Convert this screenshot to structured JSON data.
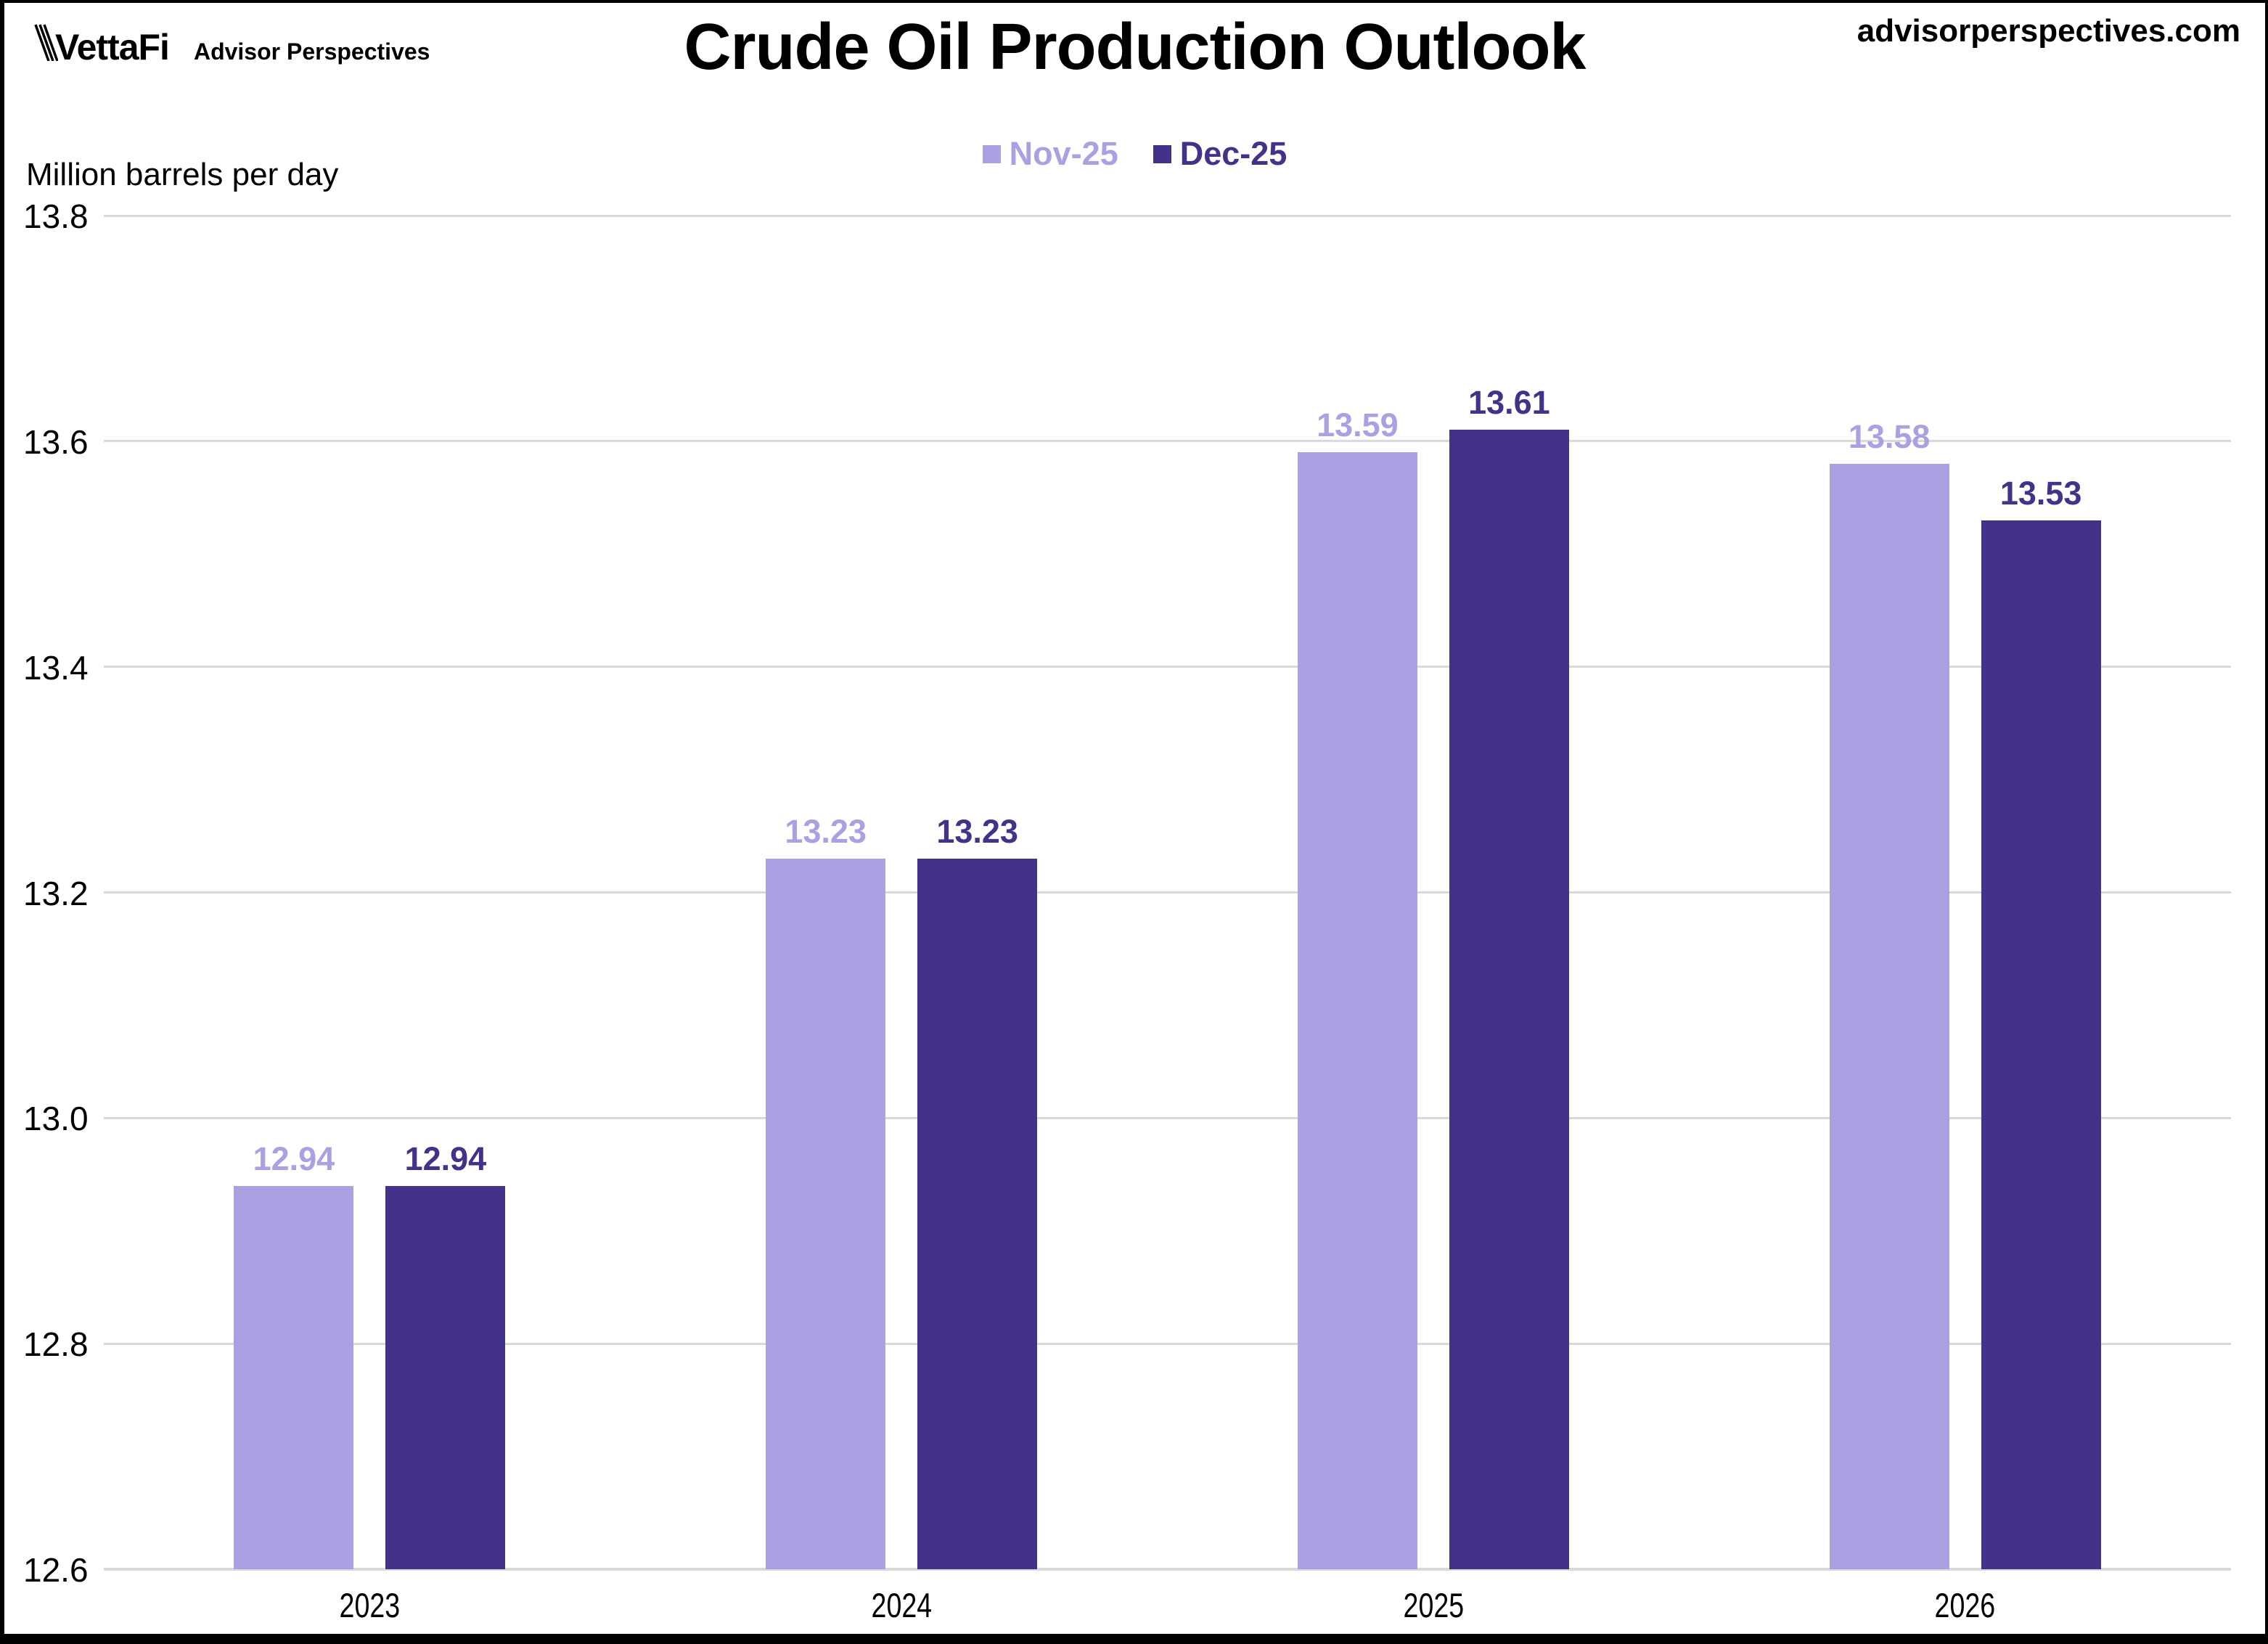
{
  "header": {
    "brand": "VettaFi",
    "brand_sub": "Advisor Perspectives",
    "website": "advisorperspectives.com"
  },
  "chart_data": {
    "type": "bar",
    "title": "Crude Oil Production Outlook",
    "ylabel": "Million barrels per day",
    "categories": [
      "2023",
      "2024",
      "2025",
      "2026"
    ],
    "series": [
      {
        "name": "Nov-25",
        "color": "#ACA0E2",
        "values": [
          12.94,
          13.23,
          13.59,
          13.58
        ]
      },
      {
        "name": "Dec-25",
        "color": "#44318A",
        "values": [
          12.94,
          13.23,
          13.61,
          13.53
        ]
      }
    ],
    "ylim": [
      12.6,
      13.8
    ],
    "yticks": [
      13.8,
      13.6,
      13.4,
      13.2,
      13.0,
      12.8,
      12.6
    ],
    "ytick_decimals": 1,
    "value_label_decimals": 2,
    "grid": true,
    "legend_position": "top-center",
    "colors": {
      "grid": "#D9D9D9",
      "axis_line": "#D9D9D9",
      "text": "#000000",
      "frame": "#000000"
    }
  }
}
